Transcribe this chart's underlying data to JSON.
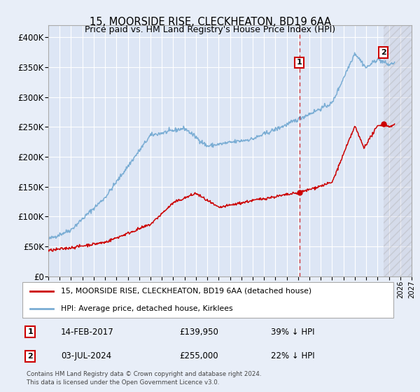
{
  "title": "15, MOORSIDE RISE, CLECKHEATON, BD19 6AA",
  "subtitle": "Price paid vs. HM Land Registry's House Price Index (HPI)",
  "ylim": [
    0,
    420000
  ],
  "yticks": [
    0,
    50000,
    100000,
    150000,
    200000,
    250000,
    300000,
    350000,
    400000
  ],
  "ytick_labels": [
    "£0",
    "£50K",
    "£100K",
    "£150K",
    "£200K",
    "£250K",
    "£300K",
    "£350K",
    "£400K"
  ],
  "background_color": "#e8eef8",
  "plot_bg_color": "#dde6f5",
  "grid_color": "#ffffff",
  "red_line_color": "#cc0000",
  "blue_line_color": "#7aadd4",
  "marker1_date_x": 2017.12,
  "marker1_value": 139950,
  "marker2_date_x": 2024.51,
  "marker2_value": 255000,
  "sale1_date": "14-FEB-2017",
  "sale1_price": "£139,950",
  "sale1_hpi": "39% ↓ HPI",
  "sale2_date": "03-JUL-2024",
  "sale2_price": "£255,000",
  "sale2_hpi": "22% ↓ HPI",
  "legend_label_red": "15, MOORSIDE RISE, CLECKHEATON, BD19 6AA (detached house)",
  "legend_label_blue": "HPI: Average price, detached house, Kirklees",
  "footer": "Contains HM Land Registry data © Crown copyright and database right 2024.\nThis data is licensed under the Open Government Licence v3.0.",
  "xmin": 1995,
  "xmax": 2027
}
